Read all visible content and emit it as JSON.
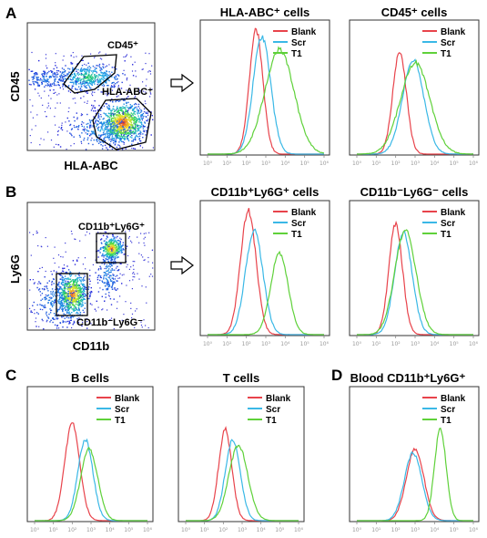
{
  "figure": {
    "panel_labels": [
      "A",
      "B",
      "C",
      "D"
    ]
  },
  "legend_colors": {
    "Blank": "#e8434b",
    "Scr": "#3ab8e6",
    "T1": "#5fd13a"
  },
  "scatter_plots": [
    {
      "panel": "A",
      "xlabel": "HLA-ABC",
      "ylabel": "CD45",
      "gates": [
        "CD45⁺",
        "HLA-ABC⁺"
      ]
    },
    {
      "panel": "B",
      "xlabel": "CD11b",
      "ylabel": "Ly6G",
      "gates": [
        "CD11b⁺Ly6G⁺",
        "CD11b⁻Ly6G⁻"
      ]
    }
  ],
  "chart_data": [
    {
      "type": "line",
      "panel": "A",
      "title": "HLA-ABC⁺ cells",
      "xscale": "log",
      "x_ticks": [
        "10⁰",
        "10¹",
        "10²",
        "10³",
        "10⁴",
        "10⁵",
        "10⁶"
      ],
      "series": [
        {
          "name": "Blank",
          "peak_log10": 2.5,
          "spread": 0.35,
          "height": 0.95
        },
        {
          "name": "Scr",
          "peak_log10": 2.8,
          "spread": 0.45,
          "height": 0.9
        },
        {
          "name": "T1",
          "peak_log10": 3.7,
          "spread": 0.75,
          "height": 0.8
        }
      ]
    },
    {
      "type": "line",
      "panel": "A",
      "title": "CD45⁺ cells",
      "xscale": "log",
      "x_ticks": [
        "10⁰",
        "10¹",
        "10²",
        "10³",
        "10⁴",
        "10⁵",
        "10⁶"
      ],
      "series": [
        {
          "name": "Blank",
          "peak_log10": 2.2,
          "spread": 0.35,
          "height": 0.78
        },
        {
          "name": "Scr",
          "peak_log10": 2.9,
          "spread": 0.55,
          "height": 0.72
        },
        {
          "name": "T1",
          "peak_log10": 3.0,
          "spread": 0.75,
          "height": 0.7
        }
      ]
    },
    {
      "type": "line",
      "panel": "B",
      "title": "CD11b⁺Ly6G⁺ cells",
      "xscale": "log",
      "x_ticks": [
        "10⁰",
        "10¹",
        "10²",
        "10³",
        "10⁴",
        "10⁵",
        "10⁶"
      ],
      "series": [
        {
          "name": "Blank",
          "peak_log10": 2.1,
          "spread": 0.4,
          "height": 0.95
        },
        {
          "name": "Scr",
          "peak_log10": 2.4,
          "spread": 0.45,
          "height": 0.8
        },
        {
          "name": "T1",
          "peak_log10": 3.7,
          "spread": 0.45,
          "height": 0.62
        }
      ]
    },
    {
      "type": "line",
      "panel": "B",
      "title": "CD11b⁻Ly6G⁻ cells",
      "xscale": "log",
      "x_ticks": [
        "10⁰",
        "10¹",
        "10²",
        "10³",
        "10⁴",
        "10⁵",
        "10⁶"
      ],
      "series": [
        {
          "name": "Blank",
          "peak_log10": 2.0,
          "spread": 0.35,
          "height": 0.85
        },
        {
          "name": "Scr",
          "peak_log10": 2.4,
          "spread": 0.45,
          "height": 0.78
        },
        {
          "name": "T1",
          "peak_log10": 2.5,
          "spread": 0.55,
          "height": 0.8
        }
      ]
    },
    {
      "type": "line",
      "panel": "C",
      "title": "B cells",
      "xscale": "log",
      "x_ticks": [
        "10⁰",
        "10¹",
        "10²",
        "10³",
        "10⁴",
        "10⁵",
        "10⁶"
      ],
      "series": [
        {
          "name": "Blank",
          "peak_log10": 2.0,
          "spread": 0.4,
          "height": 0.75
        },
        {
          "name": "Scr",
          "peak_log10": 2.7,
          "spread": 0.4,
          "height": 0.62
        },
        {
          "name": "T1",
          "peak_log10": 2.9,
          "spread": 0.45,
          "height": 0.55
        }
      ]
    },
    {
      "type": "line",
      "panel": "C",
      "title": "T cells",
      "xscale": "log",
      "x_ticks": [
        "10⁰",
        "10¹",
        "10²",
        "10³",
        "10⁴",
        "10⁵",
        "10⁶"
      ],
      "series": [
        {
          "name": "Blank",
          "peak_log10": 2.1,
          "spread": 0.35,
          "height": 0.7
        },
        {
          "name": "Scr",
          "peak_log10": 2.5,
          "spread": 0.4,
          "height": 0.62
        },
        {
          "name": "T1",
          "peak_log10": 2.8,
          "spread": 0.5,
          "height": 0.58
        }
      ]
    },
    {
      "type": "line",
      "panel": "D",
      "title": "Blood CD11b⁺Ly6G⁺",
      "xscale": "log",
      "x_ticks": [
        "10⁰",
        "10¹",
        "10²",
        "10³",
        "10⁴",
        "10⁵",
        "10⁶"
      ],
      "series": [
        {
          "name": "Blank",
          "peak_log10": 3.0,
          "spread": 0.45,
          "height": 0.55
        },
        {
          "name": "Scr",
          "peak_log10": 2.9,
          "spread": 0.45,
          "height": 0.52
        },
        {
          "name": "T1",
          "peak_log10": 4.3,
          "spread": 0.3,
          "height": 0.7
        }
      ]
    }
  ]
}
